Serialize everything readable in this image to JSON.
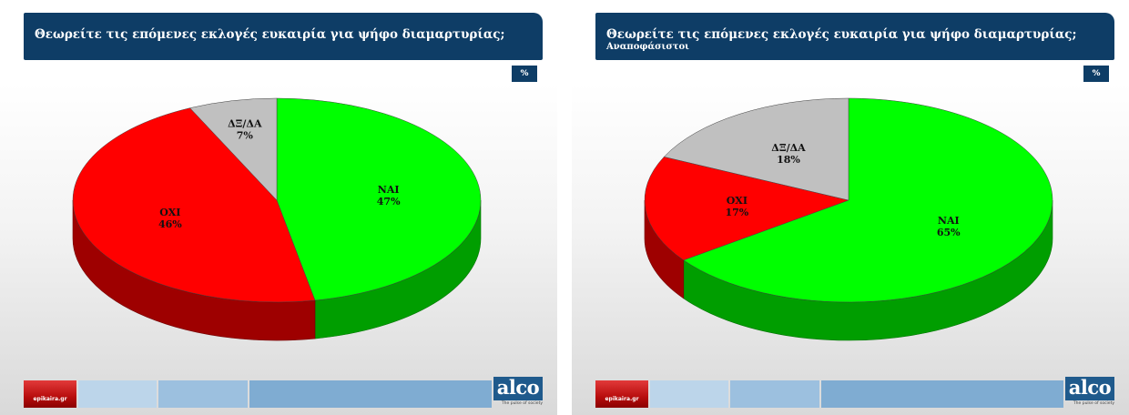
{
  "slides": [
    {
      "title": "Θεωρείτε τις επόμενες εκλογές ευκαιρία για ψήφο διαμαρτυρίας;",
      "subtitle": "",
      "unit": "%",
      "footer_left_logo": "epikaira.gr",
      "footer_right_logo": "alco",
      "footer_tagline": "The pulse of society"
    },
    {
      "title": "Θεωρείτε τις επόμενες εκλογές ευκαιρία για ψήφο διαμαρτυρίας;",
      "subtitle": "Αναποφάσιστοι",
      "unit": "%",
      "footer_left_logo": "epikaira.gr",
      "footer_right_logo": "alco",
      "footer_tagline": "The pulse of society"
    }
  ],
  "chart_data": [
    {
      "type": "pie",
      "title": "Θεωρείτε τις επόμενες εκλογές ευκαιρία για ψήφο διαμαρτυρίας;",
      "slices": [
        {
          "label": "ΝΑΙ",
          "value": 47,
          "display": "47%",
          "color": "#00ff00"
        },
        {
          "label": "ΟΧΙ",
          "value": 46,
          "display": "46%",
          "color": "#ff0000"
        },
        {
          "label": "ΔΞ/ΔΑ",
          "value": 7,
          "display": "7%",
          "color": "#c0c0c0"
        }
      ]
    },
    {
      "type": "pie",
      "title": "Θεωρείτε τις επόμενες εκλογές ευκαιρία για ψήφο διαμαρτυρίας;",
      "subtitle": "Αναποφάσιστοι",
      "slices": [
        {
          "label": "ΝΑΙ",
          "value": 65,
          "display": "65%",
          "color": "#00ff00"
        },
        {
          "label": "ΟΧΙ",
          "value": 17,
          "display": "17%",
          "color": "#ff0000"
        },
        {
          "label": "ΔΞ/ΔΑ",
          "value": 18,
          "display": "18%",
          "color": "#c0c0c0"
        }
      ]
    }
  ]
}
